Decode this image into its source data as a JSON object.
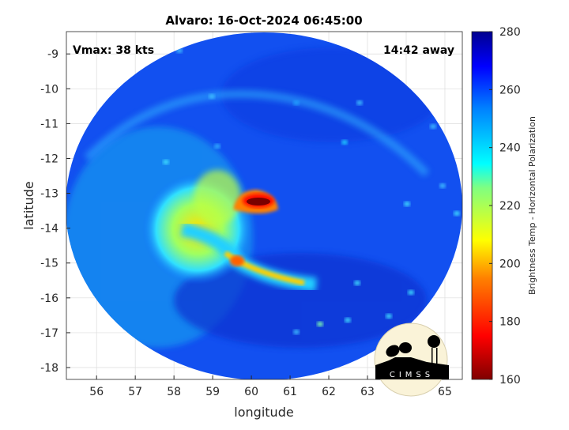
{
  "chart_data": {
    "type": "heatmap",
    "title": "Alvaro: 16-Oct-2024 06:45:00",
    "xlabel": "longitude",
    "ylabel": "latitude",
    "xlim": [
      55.22,
      65.45
    ],
    "ylim": [
      -18.34,
      -8.36
    ],
    "xticks": [
      56,
      57,
      58,
      59,
      60,
      61,
      62,
      63,
      64,
      65
    ],
    "yticks": [
      -9,
      -10,
      -11,
      -12,
      -13,
      -14,
      -15,
      -16,
      -17,
      -18
    ],
    "grid": true,
    "annotations": {
      "vmax": "Vmax: 38 kts",
      "time_away": "14:42 away"
    },
    "colorbar": {
      "label": "Brightness Temp - Horizontal Polarization",
      "range": [
        160,
        280
      ],
      "ticks": [
        160,
        180,
        200,
        220,
        240,
        260,
        280
      ],
      "colormap": "jet",
      "colors": [
        "#800000",
        "#ff0000",
        "#ff8000",
        "#ffff00",
        "#80ff80",
        "#00ffff",
        "#0080ff",
        "#0000ff",
        "#00008f"
      ]
    },
    "features": {
      "background_tb": 260,
      "center": {
        "lon": 60.4,
        "lat": -13.3,
        "tb": 165
      },
      "rainband_min_tb": 195
    }
  },
  "logo": {
    "text": "CIMSS"
  }
}
